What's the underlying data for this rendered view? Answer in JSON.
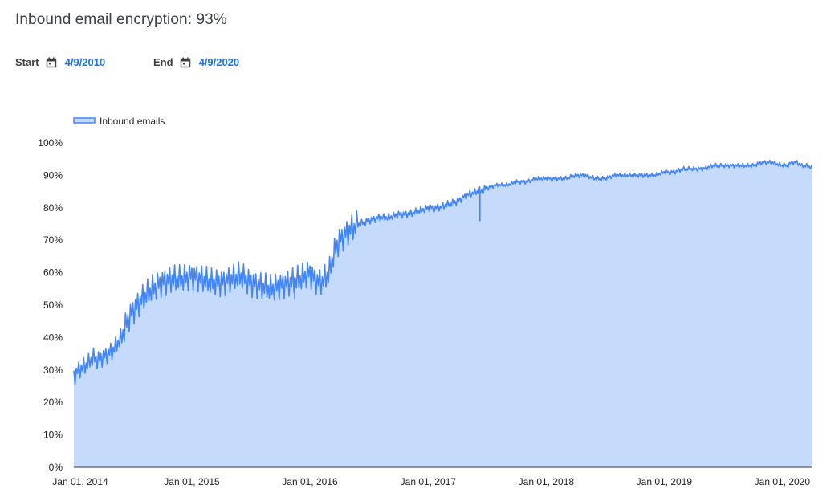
{
  "header": {
    "title": "Inbound email encryption: 93%"
  },
  "date_range": {
    "start_label": "Start",
    "start_date": "4/9/2010",
    "end_label": "End",
    "end_date": "4/9/2020",
    "icon": "calendar-icon"
  },
  "colors": {
    "line": "#4285f4",
    "fill": "#c6dafc",
    "accent": "#1a73e8"
  },
  "chart_data": {
    "type": "area",
    "title": "Inbound email encryption: 93%",
    "legend": {
      "entries": [
        "Inbound emails"
      ],
      "placement": "top-left"
    },
    "series": [
      {
        "name": "Inbound emails",
        "x": [
          "2014-01-01",
          "2014-01-15",
          "2014-02-01",
          "2014-02-15",
          "2014-03-01",
          "2014-03-15",
          "2014-04-01",
          "2014-04-15",
          "2014-05-01",
          "2014-05-15",
          "2014-06-01",
          "2014-06-15",
          "2014-07-01",
          "2014-08-01",
          "2014-09-01",
          "2014-10-01",
          "2014-11-01",
          "2014-12-01",
          "2015-01-01",
          "2015-02-01",
          "2015-03-01",
          "2015-04-01",
          "2015-05-01",
          "2015-06-01",
          "2015-07-01",
          "2015-08-01",
          "2015-09-01",
          "2015-10-01",
          "2015-11-01",
          "2015-12-01",
          "2015-12-15",
          "2016-01-01",
          "2016-01-15",
          "2016-02-01",
          "2016-02-15",
          "2016-03-01",
          "2016-03-15",
          "2016-04-01",
          "2016-05-01",
          "2016-06-01",
          "2016-07-01",
          "2016-08-01",
          "2016-09-01",
          "2016-10-01",
          "2016-11-01",
          "2016-12-01",
          "2017-01-01",
          "2017-02-01",
          "2017-03-01",
          "2017-04-01",
          "2017-05-01",
          "2017-06-01",
          "2017-07-01",
          "2017-08-01",
          "2017-09-01",
          "2017-10-01",
          "2017-11-01",
          "2017-12-01",
          "2018-01-01",
          "2018-02-01",
          "2018-03-01",
          "2018-04-01",
          "2018-05-01",
          "2018-06-01",
          "2018-07-01",
          "2018-08-01",
          "2018-09-01",
          "2018-10-01",
          "2018-11-01",
          "2018-12-01",
          "2019-01-01",
          "2019-02-01",
          "2019-03-01",
          "2019-04-01",
          "2019-05-01",
          "2019-06-01",
          "2019-07-01",
          "2019-08-01",
          "2019-09-01",
          "2019-10-01",
          "2019-11-01",
          "2019-12-01",
          "2020-01-01",
          "2020-01-15",
          "2020-02-01",
          "2020-02-15",
          "2020-03-01",
          "2020-03-15",
          "2020-04-01"
        ],
        "values": [
          28,
          30,
          31,
          32,
          34,
          33,
          34,
          35,
          36,
          38,
          41,
          45,
          48,
          52,
          55,
          57,
          58,
          58,
          59,
          58,
          57,
          57,
          58,
          59,
          57,
          56,
          55,
          56,
          57,
          58,
          59,
          60,
          58,
          57,
          58,
          60,
          66,
          70,
          73,
          75,
          76,
          77,
          77,
          78,
          78,
          79,
          80,
          80,
          81,
          82,
          84,
          85,
          86,
          87,
          87,
          88,
          88,
          89,
          89,
          89,
          89,
          90,
          90,
          89,
          89,
          90,
          90,
          90,
          90,
          90,
          91,
          91,
          92,
          92,
          92,
          93,
          93,
          93,
          93,
          93,
          94,
          94,
          93,
          93,
          94,
          94,
          93,
          93,
          92.5
        ],
        "dips": [
          {
            "x": "2015-11-15",
            "y": 52
          },
          {
            "x": "2017-06-10",
            "y": 76
          }
        ]
      }
    ],
    "x_axis": {
      "type": "date",
      "range": [
        "2014-01-01",
        "2020-04-01"
      ],
      "tick_values": [
        "2014-01-01",
        "2015-01-01",
        "2016-01-01",
        "2017-01-01",
        "2018-01-01",
        "2019-01-01",
        "2020-01-01"
      ],
      "tick_labels": [
        "Jan 01, 2014",
        "Jan 01, 2015",
        "Jan 01, 2016",
        "Jan 01, 2017",
        "Jan 01, 2018",
        "Jan 01, 2019",
        "Jan 01, 2020"
      ]
    },
    "y_axis": {
      "range": [
        0,
        100
      ],
      "tick_values": [
        0,
        10,
        20,
        30,
        40,
        50,
        60,
        70,
        80,
        90,
        100
      ],
      "tick_labels": [
        "0%",
        "10%",
        "20%",
        "30%",
        "40%",
        "50%",
        "60%",
        "70%",
        "80%",
        "90%",
        "100%"
      ]
    },
    "grid": false
  }
}
